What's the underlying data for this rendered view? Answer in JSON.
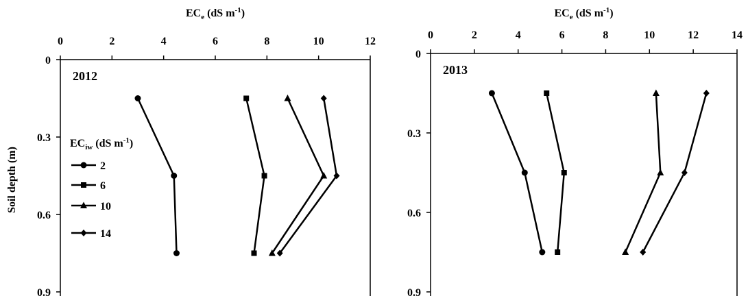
{
  "chart_data": [
    {
      "type": "line",
      "panel_label": "2012",
      "xlabel": {
        "main": "EC",
        "sub": "e",
        "rest": " (dS m",
        "sup": "-1",
        "close": ")"
      },
      "ylabel": "Soil depth (m)",
      "xlim": [
        0,
        12
      ],
      "xticks": [
        0,
        2,
        4,
        6,
        8,
        10,
        12
      ],
      "ylim": [
        0,
        0.9
      ],
      "yticks": [
        0,
        0.3,
        0.6,
        0.9
      ],
      "y_ticklabels": [
        "0",
        "0.3",
        "0.6",
        "0.9"
      ],
      "x_axis_position": "top",
      "y_inverted": true,
      "legend": {
        "title": {
          "main": "EC",
          "sub": "iw",
          "rest": " (dS m",
          "sup": "-1",
          "close": ")"
        },
        "placement": "left",
        "entries": [
          "2",
          "6",
          "10",
          "14"
        ]
      },
      "series": [
        {
          "name": "2",
          "marker": "circle",
          "x": [
            3.0,
            4.4,
            4.5
          ],
          "y": [
            0.15,
            0.45,
            0.75
          ]
        },
        {
          "name": "6",
          "marker": "square",
          "x": [
            7.2,
            7.9,
            7.5
          ],
          "y": [
            0.15,
            0.45,
            0.75
          ]
        },
        {
          "name": "10",
          "marker": "triangle",
          "x": [
            8.8,
            10.2,
            8.2
          ],
          "y": [
            0.15,
            0.45,
            0.75
          ]
        },
        {
          "name": "14",
          "marker": "diamond",
          "x": [
            10.2,
            10.7,
            8.5
          ],
          "y": [
            0.15,
            0.45,
            0.75
          ]
        }
      ]
    },
    {
      "type": "line",
      "panel_label": "2013",
      "xlabel": {
        "main": "EC",
        "sub": "e",
        "rest": " (dS m",
        "sup": "-1",
        "close": ")"
      },
      "ylabel": "",
      "xlim": [
        0,
        14
      ],
      "xticks": [
        0,
        2,
        4,
        6,
        8,
        10,
        12,
        14
      ],
      "ylim": [
        0,
        0.9
      ],
      "yticks": [
        0,
        0.3,
        0.6,
        0.9
      ],
      "y_ticklabels": [
        "0",
        "0.3",
        "0.6",
        "0.9"
      ],
      "x_axis_position": "top",
      "y_inverted": true,
      "series": [
        {
          "name": "2",
          "marker": "circle",
          "x": [
            2.8,
            4.3,
            5.1
          ],
          "y": [
            0.15,
            0.45,
            0.75
          ]
        },
        {
          "name": "6",
          "marker": "square",
          "x": [
            5.3,
            6.1,
            5.8
          ],
          "y": [
            0.15,
            0.45,
            0.75
          ]
        },
        {
          "name": "10",
          "marker": "triangle",
          "x": [
            10.3,
            10.5,
            8.9
          ],
          "y": [
            0.15,
            0.45,
            0.75
          ]
        },
        {
          "name": "14",
          "marker": "diamond",
          "x": [
            12.6,
            11.6,
            9.7
          ],
          "y": [
            0.15,
            0.45,
            0.75
          ]
        }
      ]
    }
  ]
}
